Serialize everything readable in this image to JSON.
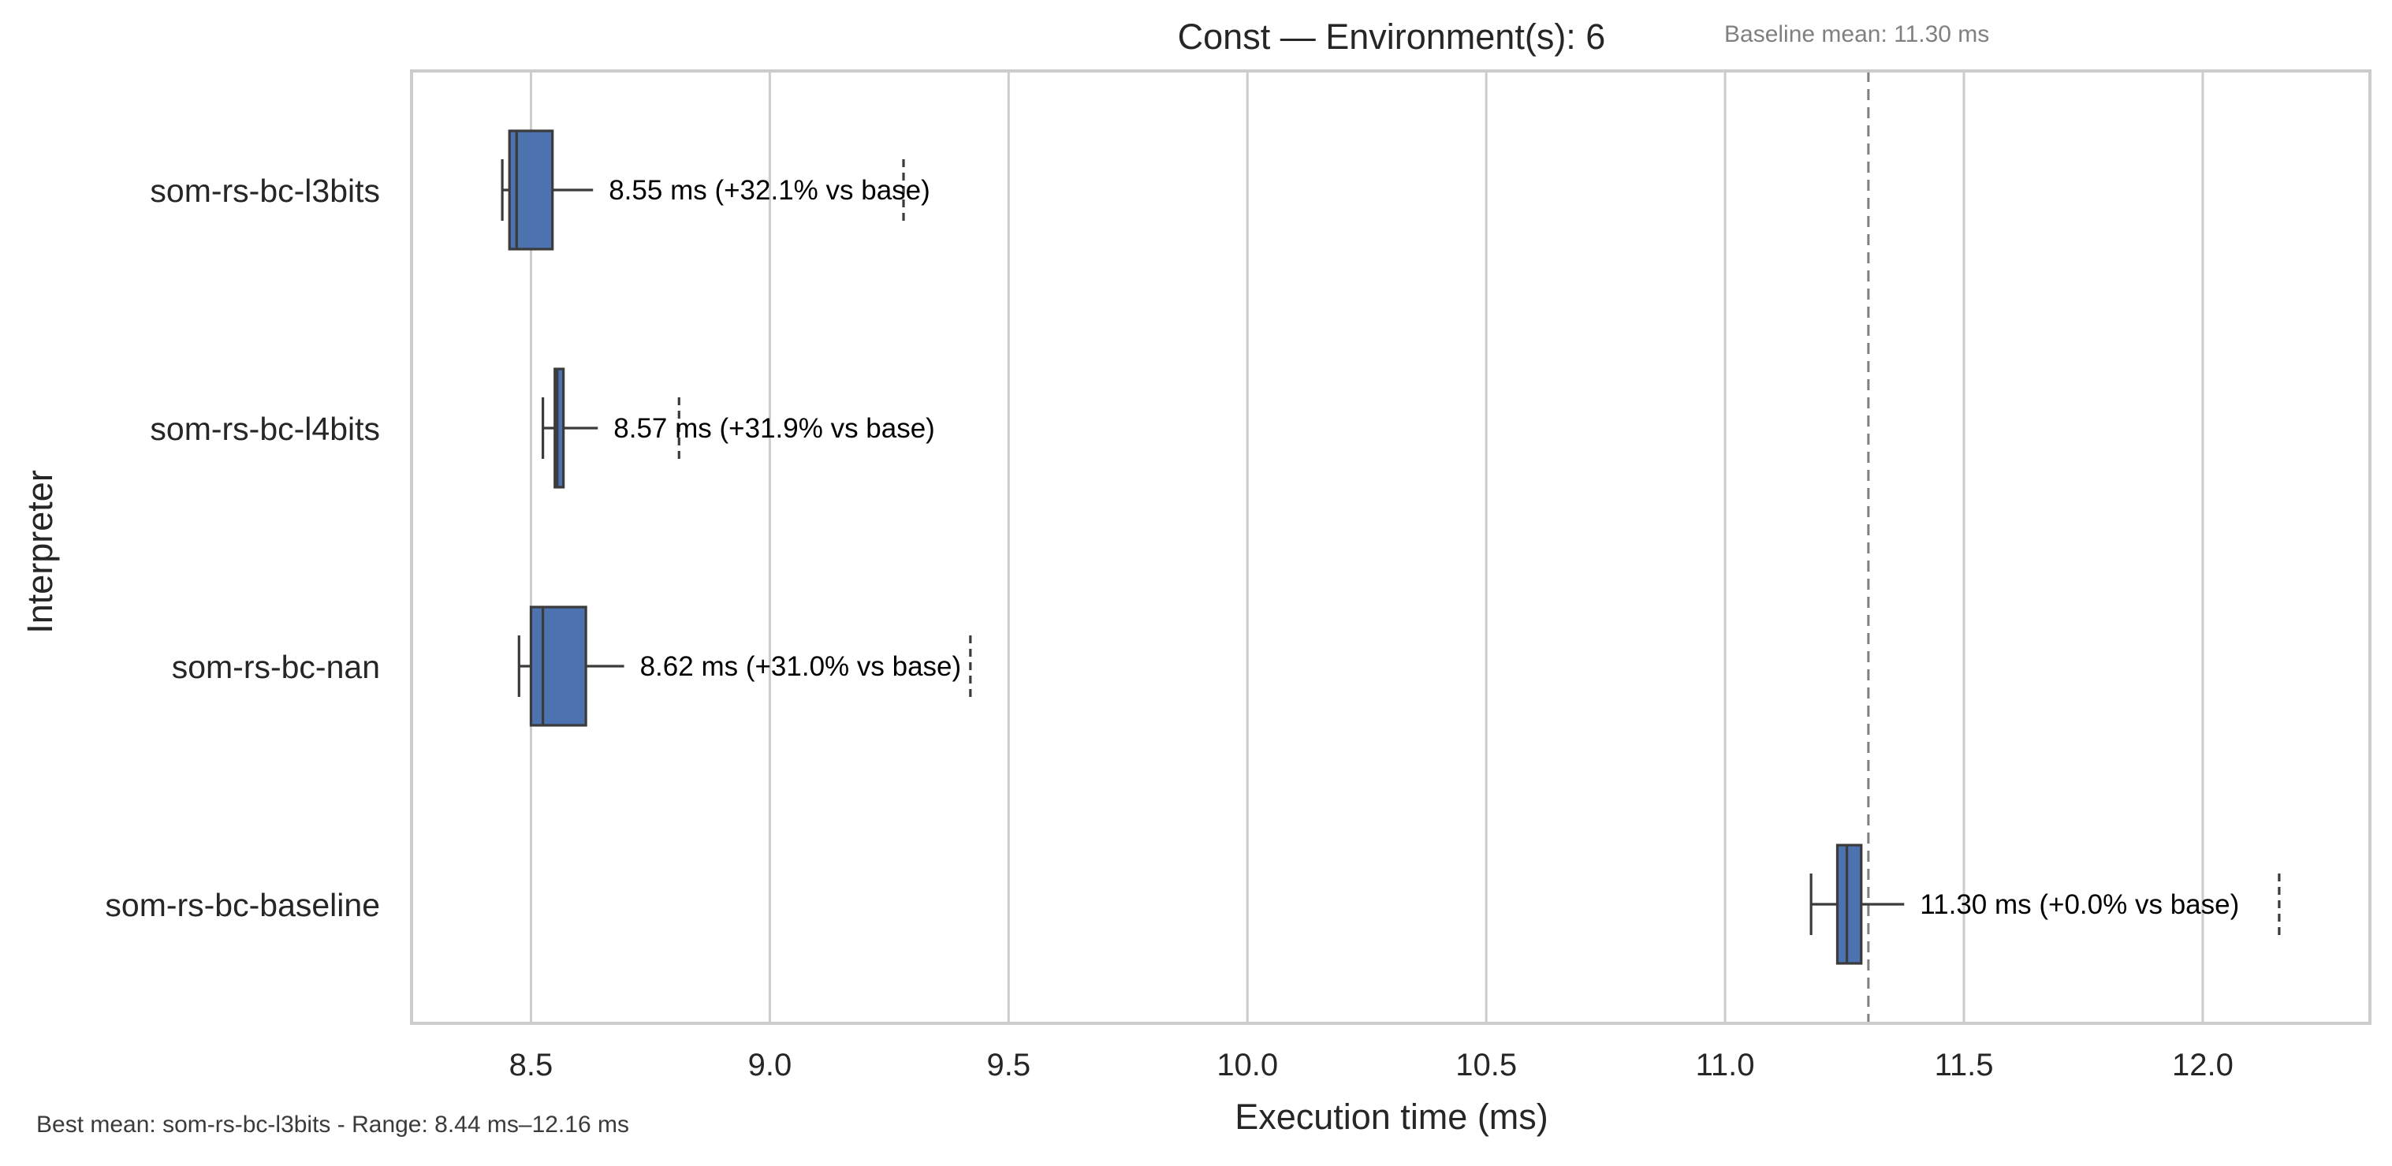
{
  "chart_data": {
    "type": "box",
    "orientation": "horizontal",
    "title": "Const — Environment(s): 6",
    "baseline_note": "Baseline mean: 11.30 ms",
    "footer_note": "Best mean: som-rs-bc-l3bits - Range: 8.44 ms–12.16 ms",
    "xlabel": "Execution time (ms)",
    "ylabel": "Interpreter",
    "xlim": [
      8.25,
      12.35
    ],
    "xticks": [
      8.5,
      9.0,
      9.5,
      10.0,
      10.5,
      11.0,
      11.5,
      12.0
    ],
    "xtick_labels": [
      "8.5",
      "9.0",
      "9.5",
      "10.0",
      "10.5",
      "11.0",
      "11.5",
      "12.0"
    ],
    "baseline_value": 11.3,
    "grid": true,
    "categories": [
      "som-rs-bc-l3bits",
      "som-rs-bc-l4bits",
      "som-rs-bc-nan",
      "som-rs-bc-baseline"
    ],
    "boxes": [
      {
        "label": "som-rs-bc-l3bits",
        "whisker_low": 8.44,
        "q1": 8.455,
        "median": 8.47,
        "q3": 8.545,
        "whisker_high": 8.63,
        "outlier": 9.28,
        "annotation": "8.55 ms  (+32.1% vs base)"
      },
      {
        "label": "som-rs-bc-l4bits",
        "whisker_low": 8.525,
        "q1": 8.55,
        "median": 8.555,
        "q3": 8.568,
        "whisker_high": 8.64,
        "outlier": 8.81,
        "annotation": "8.57 ms  (+31.9% vs base)"
      },
      {
        "label": "som-rs-bc-nan",
        "whisker_low": 8.475,
        "q1": 8.5,
        "median": 8.525,
        "q3": 8.615,
        "whisker_high": 8.695,
        "outlier": 9.42,
        "annotation": "8.62 ms  (+31.0% vs base)"
      },
      {
        "label": "som-rs-bc-baseline",
        "whisker_low": 11.18,
        "q1": 11.235,
        "median": 11.255,
        "q3": 11.285,
        "whisker_high": 11.375,
        "outlier": 12.16,
        "annotation": "11.30 ms  (+0.0% vs base)"
      }
    ],
    "colors": {
      "box_fill": "#4c72b0",
      "box_edge": "#3b3b3b",
      "grid": "#cccccc",
      "frame": "#cccccc",
      "baseline_line": "#808080",
      "note_text": "#808080",
      "text": "#262626"
    }
  }
}
